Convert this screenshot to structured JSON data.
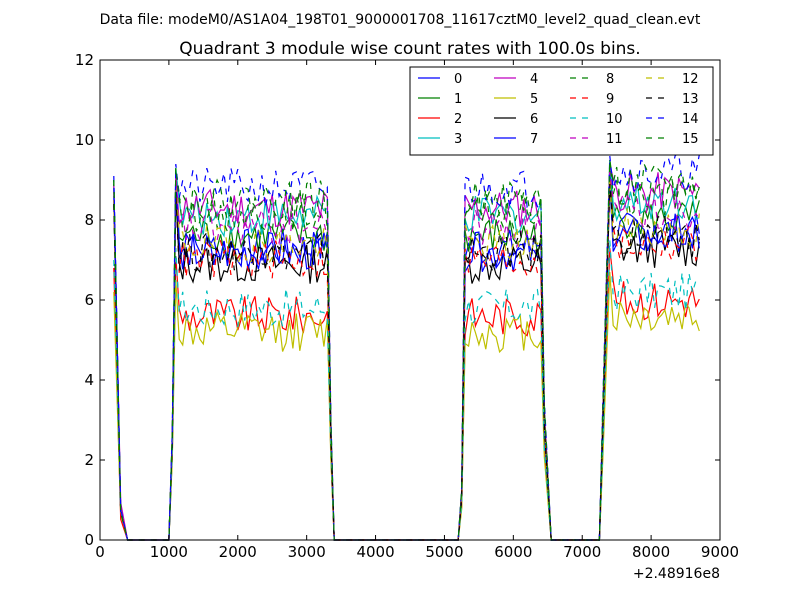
{
  "header": {
    "datafile": "Data file: modeM0/AS1A04_198T01_9000001708_11617cztM0_level2_quad_clean.evt"
  },
  "chart_data": {
    "type": "line",
    "title": "Quadrant 3 module wise count rates with 100.0s bins.",
    "xlabel": "",
    "ylabel": "",
    "x_offset_label": "+2.48916e8",
    "xlim": [
      0,
      9000
    ],
    "ylim": [
      0,
      12
    ],
    "xticks": [
      0,
      1000,
      2000,
      3000,
      4000,
      5000,
      6000,
      7000,
      8000,
      9000
    ],
    "yticks": [
      0,
      2,
      4,
      6,
      8,
      10,
      12
    ],
    "xtick_labels": [
      "0",
      "1000",
      "2000",
      "3000",
      "4000",
      "5000",
      "6000",
      "7000",
      "8000",
      "9000"
    ],
    "ytick_labels": [
      "0",
      "2",
      "4",
      "6",
      "8",
      "10",
      "12"
    ],
    "legend_position": "top-right",
    "legend_columns": 4,
    "observation_windows": [
      {
        "start": 200,
        "end": 300,
        "first_value_scale": 1.0
      },
      {
        "start": 1100,
        "end": 3300
      },
      {
        "start": 5300,
        "end": 6400
      },
      {
        "start": 7400,
        "end": 8700
      }
    ],
    "ramp_points": [
      {
        "x": 300,
        "frac": 0.08
      },
      {
        "x": 400,
        "frac": 0.0
      },
      {
        "x": 1000,
        "frac": 0.0
      },
      {
        "x": 1050,
        "frac": 0.2
      },
      {
        "x": 3350,
        "frac": 0.3
      },
      {
        "x": 3400,
        "frac": 0.0
      },
      {
        "x": 5200,
        "frac": 0.0
      },
      {
        "x": 5250,
        "frac": 0.15
      },
      {
        "x": 6450,
        "frac": 0.4
      },
      {
        "x": 6550,
        "frac": 0.0
      },
      {
        "x": 7250,
        "frac": 0.0
      },
      {
        "x": 7300,
        "frac": 0.4
      }
    ],
    "series": [
      {
        "name": "0",
        "color": "#0000ff",
        "dash": "solid",
        "level": 7.3,
        "start": 8.8
      },
      {
        "name": "1",
        "color": "#008000",
        "dash": "solid",
        "level": 7.6,
        "start": 8.9
      },
      {
        "name": "2",
        "color": "#ff0000",
        "dash": "solid",
        "level": 5.6,
        "start": 6.8
      },
      {
        "name": "3",
        "color": "#00bfbf",
        "dash": "solid",
        "level": 8.1,
        "start": 9.0
      },
      {
        "name": "4",
        "color": "#bf00bf",
        "dash": "solid",
        "level": 8.3,
        "start": 8.9
      },
      {
        "name": "5",
        "color": "#bfbf00",
        "dash": "solid",
        "level": 5.2,
        "start": 6.2
      },
      {
        "name": "6",
        "color": "#000000",
        "dash": "solid",
        "level": 6.9,
        "start": 8.4
      },
      {
        "name": "7",
        "color": "#0000ff",
        "dash": "solid",
        "level": 7.2,
        "start": 8.6
      },
      {
        "name": "8",
        "color": "#008000",
        "dash": "dashed",
        "level": 8.2,
        "start": 9.0
      },
      {
        "name": "9",
        "color": "#ff0000",
        "dash": "dashed",
        "level": 7.0,
        "start": 8.5
      },
      {
        "name": "10",
        "color": "#00bfbf",
        "dash": "dashed",
        "level": 5.8,
        "start": 7.0
      },
      {
        "name": "11",
        "color": "#bf00bf",
        "dash": "dashed",
        "level": 7.8,
        "start": 8.7
      },
      {
        "name": "12",
        "color": "#bfbf00",
        "dash": "dashed",
        "level": 7.4,
        "start": 8.5
      },
      {
        "name": "13",
        "color": "#000000",
        "dash": "dashed",
        "level": 7.2,
        "start": 8.4
      },
      {
        "name": "14",
        "color": "#0000ff",
        "dash": "dashed",
        "level": 8.8,
        "start": 9.1
      },
      {
        "name": "15",
        "color": "#008000",
        "dash": "dashed",
        "level": 8.5,
        "start": 9.0
      }
    ]
  }
}
